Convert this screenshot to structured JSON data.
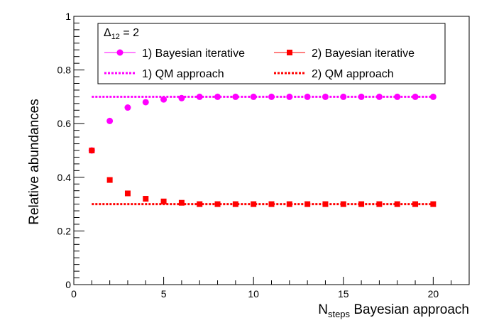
{
  "chart_data": {
    "type": "scatter",
    "title": "",
    "xlabel": {
      "main": "N",
      "sub": "steps",
      "rest": " Bayesian approach"
    },
    "ylabel": "Relative abundances",
    "xlim": [
      0,
      22
    ],
    "ylim": [
      0,
      1
    ],
    "x_ticks": [
      0,
      5,
      10,
      15,
      20
    ],
    "x_tick_labels": [
      "0",
      "5",
      "10",
      "15",
      "20"
    ],
    "y_ticks": [
      0,
      0.2,
      0.4,
      0.6,
      0.8,
      1
    ],
    "y_tick_labels": [
      "0",
      "0.2",
      "0.4",
      "0.6",
      "0.8",
      "1"
    ],
    "grid": false,
    "legend": {
      "position": "top-inside",
      "header": {
        "main": "Δ",
        "sub": "12",
        "rest": " = 2"
      },
      "entries": [
        {
          "label": "1) Bayesian iterative",
          "kind": "marker",
          "marker": "circle",
          "color": "#ff00ff"
        },
        {
          "label": "2) Bayesian iterative",
          "kind": "marker",
          "marker": "square",
          "color": "#ff0000"
        },
        {
          "label": "1) QM approach",
          "kind": "dotted-line",
          "color": "#ff00ff"
        },
        {
          "label": "2) QM approach",
          "kind": "dotted-line",
          "color": "#ff0000"
        }
      ]
    },
    "series": [
      {
        "name": "1) Bayesian iterative",
        "marker": "circle",
        "color": "#ff00ff",
        "x": [
          1,
          2,
          3,
          4,
          5,
          6,
          7,
          8,
          9,
          10,
          11,
          12,
          13,
          14,
          15,
          16,
          17,
          18,
          19,
          20
        ],
        "y": [
          0.5,
          0.61,
          0.66,
          0.68,
          0.69,
          0.695,
          0.7,
          0.7,
          0.7,
          0.7,
          0.7,
          0.7,
          0.7,
          0.7,
          0.7,
          0.7,
          0.7,
          0.7,
          0.7,
          0.7
        ]
      },
      {
        "name": "2) Bayesian iterative",
        "marker": "square",
        "color": "#ff0000",
        "x": [
          1,
          2,
          3,
          4,
          5,
          6,
          7,
          8,
          9,
          10,
          11,
          12,
          13,
          14,
          15,
          16,
          17,
          18,
          19,
          20
        ],
        "y": [
          0.5,
          0.39,
          0.34,
          0.32,
          0.31,
          0.305,
          0.3,
          0.3,
          0.3,
          0.3,
          0.3,
          0.3,
          0.3,
          0.3,
          0.3,
          0.3,
          0.3,
          0.3,
          0.3,
          0.3
        ]
      },
      {
        "name": "1) QM approach",
        "style": "dotted-line",
        "color": "#ff00ff",
        "x": [
          1,
          20
        ],
        "y": [
          0.7,
          0.7
        ]
      },
      {
        "name": "2) QM approach",
        "style": "dotted-line",
        "color": "#ff0000",
        "x": [
          1,
          20
        ],
        "y": [
          0.3,
          0.3
        ]
      }
    ]
  }
}
